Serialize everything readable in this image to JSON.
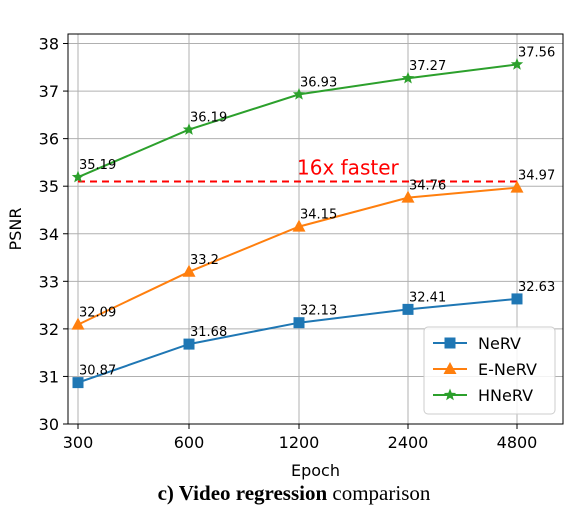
{
  "chart_data": {
    "type": "line",
    "xlabel": "Epoch",
    "ylabel": "PSNR",
    "categories": [
      "300",
      "600",
      "1200",
      "2400",
      "4800"
    ],
    "ylim": [
      30,
      38.2
    ],
    "yticks": [
      "30",
      "31",
      "32",
      "33",
      "34",
      "35",
      "36",
      "37",
      "38"
    ],
    "grid": true,
    "legend_position": "lower-right",
    "series": [
      {
        "name": "NeRV",
        "marker": "square",
        "color": "#1f77b4",
        "values": [
          30.87,
          31.68,
          32.13,
          32.41,
          32.63
        ],
        "labels": [
          "30.87",
          "31.68",
          "32.13",
          "32.41",
          "32.63"
        ]
      },
      {
        "name": "E-NeRV",
        "marker": "triangle",
        "color": "#ff7f0e",
        "values": [
          32.09,
          33.2,
          34.15,
          34.76,
          34.97
        ],
        "labels": [
          "32.09",
          "33.2",
          "34.15",
          "34.76",
          "34.97"
        ]
      },
      {
        "name": "HNeRV",
        "marker": "star",
        "color": "#2ca02c",
        "values": [
          35.19,
          36.19,
          36.93,
          37.27,
          37.56
        ],
        "labels": [
          "35.19",
          "36.19",
          "36.93",
          "37.27",
          "37.56"
        ]
      }
    ],
    "reference_line": {
      "y": 35.1,
      "color": "#ff0000",
      "style": "dashed",
      "text": "16x faster"
    }
  },
  "caption": {
    "bold": "c) Video regression",
    "rest": " comparison"
  }
}
